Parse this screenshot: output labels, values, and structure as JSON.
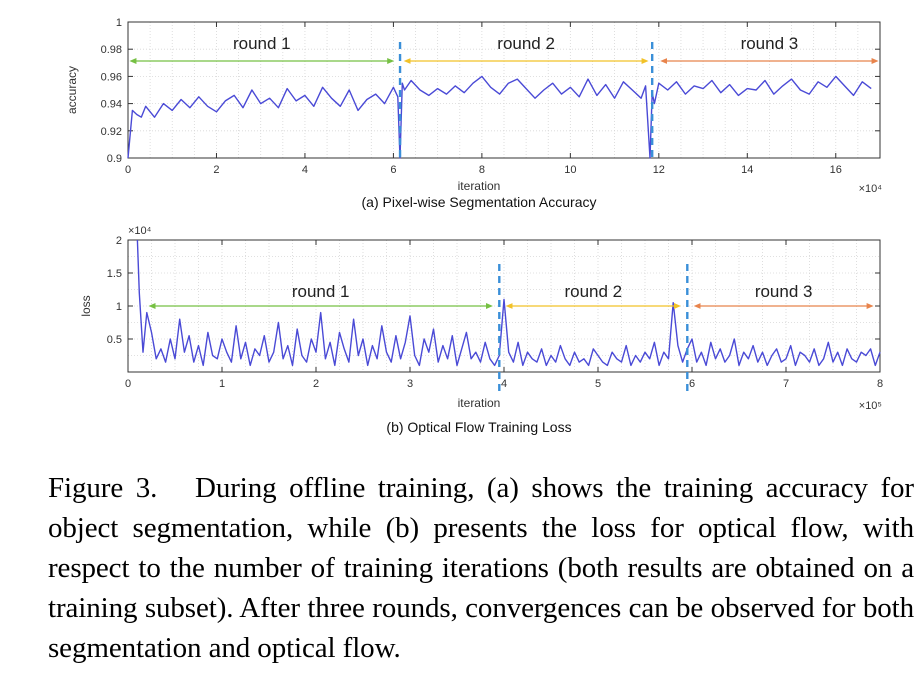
{
  "caption": {
    "label": "Figure 3.",
    "text": "During offline training, (a) shows the training accuracy for object segmentation, while (b) presents the loss for optical flow, with respect to the number of training iterations (both results are obtained on a training subset). After three rounds, convergences can be observed for both segmentation and optical flow."
  },
  "chart_data": [
    {
      "type": "line",
      "subtitle": "(a) Pixel-wise Segmentation Accuracy",
      "xlabel": "iteration",
      "ylabel": "accuracy",
      "x_multiplier": "×10⁴",
      "xlim": [
        0,
        17
      ],
      "ylim": [
        0.9,
        1.0
      ],
      "x_ticks": [
        0,
        2,
        4,
        6,
        8,
        10,
        12,
        14,
        16
      ],
      "y_ticks": [
        0.9,
        0.92,
        0.94,
        0.96,
        0.98,
        1
      ],
      "y_tick_labels": [
        "0.9",
        "0.92",
        "0.94",
        "0.96",
        "0.98",
        "1"
      ],
      "grid": true,
      "color": "#4a4ad6",
      "round_boundaries": [
        6.15,
        11.85
      ],
      "rounds": [
        {
          "label": "round 1",
          "from": 0.1,
          "to": 5.95,
          "color": "#76c043"
        },
        {
          "label": "round 2",
          "from": 6.3,
          "to": 11.7,
          "color": "#f2c228"
        },
        {
          "label": "round 3",
          "from": 12.1,
          "to": 16.9,
          "color": "#e8844c"
        }
      ],
      "series": [
        {
          "x": [
            0,
            0.1,
            0.2,
            0.3,
            0.4,
            0.6,
            0.8,
            1.0,
            1.2,
            1.4,
            1.6,
            1.8,
            2.0,
            2.2,
            2.4,
            2.6,
            2.8,
            3.0,
            3.2,
            3.4,
            3.6,
            3.8,
            4.0,
            4.2,
            4.4,
            4.6,
            4.8,
            5.0,
            5.2,
            5.4,
            5.6,
            5.8,
            6.0,
            6.1,
            6.15,
            6.2,
            6.25,
            6.4,
            6.6,
            6.8,
            7.0,
            7.2,
            7.4,
            7.6,
            7.8,
            8.0,
            8.2,
            8.4,
            8.6,
            8.8,
            9.0,
            9.2,
            9.4,
            9.6,
            9.8,
            10.0,
            10.2,
            10.4,
            10.6,
            10.8,
            11.0,
            11.2,
            11.4,
            11.6,
            11.7,
            11.8,
            11.85,
            11.9,
            12.0,
            12.2,
            12.4,
            12.6,
            12.8,
            13.0,
            13.2,
            13.4,
            13.6,
            13.8,
            14.0,
            14.2,
            14.4,
            14.6,
            14.8,
            15.0,
            15.2,
            15.4,
            15.6,
            15.8,
            16.0,
            16.2,
            16.4,
            16.6,
            16.8
          ],
          "y": [
            0.9,
            0.935,
            0.932,
            0.93,
            0.938,
            0.93,
            0.94,
            0.935,
            0.943,
            0.937,
            0.945,
            0.938,
            0.934,
            0.942,
            0.946,
            0.937,
            0.95,
            0.94,
            0.944,
            0.937,
            0.951,
            0.942,
            0.946,
            0.938,
            0.952,
            0.944,
            0.938,
            0.95,
            0.935,
            0.943,
            0.947,
            0.94,
            0.952,
            0.945,
            0.9,
            0.955,
            0.95,
            0.957,
            0.95,
            0.946,
            0.951,
            0.947,
            0.953,
            0.948,
            0.955,
            0.96,
            0.952,
            0.947,
            0.955,
            0.958,
            0.951,
            0.944,
            0.95,
            0.955,
            0.947,
            0.952,
            0.945,
            0.958,
            0.946,
            0.954,
            0.944,
            0.956,
            0.95,
            0.944,
            0.953,
            0.9,
            0.948,
            0.94,
            0.955,
            0.95,
            0.956,
            0.947,
            0.953,
            0.951,
            0.957,
            0.948,
            0.954,
            0.946,
            0.951,
            0.95,
            0.957,
            0.947,
            0.953,
            0.958,
            0.95,
            0.947,
            0.956,
            0.952,
            0.96,
            0.953,
            0.946,
            0.956,
            0.951
          ]
        }
      ]
    },
    {
      "type": "line",
      "subtitle": "(b) Optical Flow Training Loss",
      "xlabel": "iteration",
      "ylabel": "loss",
      "x_multiplier": "×10⁵",
      "y_multiplier": "×10⁴",
      "xlim": [
        0,
        8
      ],
      "ylim": [
        0,
        2
      ],
      "x_ticks": [
        0,
        1,
        2,
        3,
        4,
        5,
        6,
        7,
        8
      ],
      "y_ticks": [
        0.5,
        1,
        1.5,
        2
      ],
      "y_tick_labels": [
        "0.5",
        "1",
        "1.5",
        "2"
      ],
      "grid": true,
      "color": "#4a4ad6",
      "round_boundaries": [
        3.95,
        5.95
      ],
      "rounds": [
        {
          "label": "round 1",
          "from": 0.25,
          "to": 3.85,
          "color": "#76c043"
        },
        {
          "label": "round 2",
          "from": 4.05,
          "to": 5.85,
          "color": "#f2c228"
        },
        {
          "label": "round 3",
          "from": 6.05,
          "to": 7.9,
          "color": "#e8844c"
        }
      ],
      "series": [
        {
          "x": [
            0.1,
            0.12,
            0.16,
            0.2,
            0.25,
            0.3,
            0.35,
            0.4,
            0.45,
            0.5,
            0.55,
            0.6,
            0.65,
            0.7,
            0.75,
            0.8,
            0.85,
            0.9,
            0.95,
            1.0,
            1.05,
            1.1,
            1.15,
            1.2,
            1.25,
            1.3,
            1.35,
            1.4,
            1.45,
            1.5,
            1.55,
            1.6,
            1.65,
            1.7,
            1.75,
            1.8,
            1.85,
            1.9,
            1.95,
            2.0,
            2.05,
            2.1,
            2.15,
            2.2,
            2.25,
            2.3,
            2.35,
            2.4,
            2.45,
            2.5,
            2.55,
            2.6,
            2.65,
            2.7,
            2.75,
            2.8,
            2.85,
            2.9,
            2.95,
            3.0,
            3.05,
            3.1,
            3.15,
            3.2,
            3.25,
            3.3,
            3.35,
            3.4,
            3.45,
            3.5,
            3.55,
            3.6,
            3.65,
            3.7,
            3.75,
            3.8,
            3.85,
            3.9,
            3.95,
            4.0,
            4.05,
            4.1,
            4.15,
            4.2,
            4.25,
            4.3,
            4.35,
            4.4,
            4.45,
            4.5,
            4.55,
            4.6,
            4.65,
            4.7,
            4.75,
            4.8,
            4.85,
            4.9,
            4.95,
            5.0,
            5.05,
            5.1,
            5.15,
            5.2,
            5.25,
            5.3,
            5.35,
            5.4,
            5.45,
            5.5,
            5.55,
            5.6,
            5.65,
            5.7,
            5.75,
            5.8,
            5.85,
            5.9,
            5.95,
            6.0,
            6.05,
            6.1,
            6.15,
            6.2,
            6.25,
            6.3,
            6.35,
            6.4,
            6.45,
            6.5,
            6.55,
            6.6,
            6.65,
            6.7,
            6.75,
            6.8,
            6.85,
            6.9,
            6.95,
            7.0,
            7.05,
            7.1,
            7.15,
            7.2,
            7.25,
            7.3,
            7.35,
            7.4,
            7.45,
            7.5,
            7.55,
            7.6,
            7.65,
            7.7,
            7.75,
            7.8,
            7.85,
            7.9,
            7.95,
            8.0
          ],
          "y": [
            2.0,
            1.2,
            0.3,
            0.9,
            0.6,
            0.2,
            0.35,
            0.15,
            0.5,
            0.2,
            0.8,
            0.3,
            0.55,
            0.15,
            0.4,
            0.1,
            0.6,
            0.25,
            0.2,
            0.5,
            0.3,
            0.15,
            0.7,
            0.2,
            0.45,
            0.1,
            0.35,
            0.25,
            0.55,
            0.15,
            0.3,
            0.75,
            0.2,
            0.4,
            0.1,
            0.65,
            0.25,
            0.15,
            0.5,
            0.3,
            0.9,
            0.2,
            0.45,
            0.1,
            0.6,
            0.35,
            0.15,
            0.8,
            0.25,
            0.5,
            0.1,
            0.4,
            0.2,
            0.7,
            0.3,
            0.15,
            0.55,
            0.2,
            0.45,
            0.85,
            0.25,
            0.1,
            0.5,
            0.3,
            0.65,
            0.15,
            0.4,
            0.2,
            0.55,
            0.1,
            0.35,
            0.6,
            0.2,
            0.3,
            0.15,
            0.45,
            0.2,
            0.1,
            0.25,
            1.1,
            0.3,
            0.15,
            0.45,
            0.1,
            0.3,
            0.2,
            0.15,
            0.35,
            0.1,
            0.25,
            0.15,
            0.4,
            0.2,
            0.1,
            0.3,
            0.15,
            0.2,
            0.1,
            0.35,
            0.25,
            0.15,
            0.1,
            0.3,
            0.2,
            0.15,
            0.4,
            0.1,
            0.25,
            0.15,
            0.3,
            0.2,
            0.45,
            0.1,
            0.3,
            0.2,
            1.05,
            0.4,
            0.15,
            0.35,
            0.5,
            0.15,
            0.3,
            0.1,
            0.45,
            0.2,
            0.35,
            0.15,
            0.25,
            0.5,
            0.1,
            0.3,
            0.2,
            0.4,
            0.15,
            0.3,
            0.1,
            0.25,
            0.35,
            0.15,
            0.2,
            0.4,
            0.1,
            0.3,
            0.25,
            0.15,
            0.35,
            0.1,
            0.2,
            0.45,
            0.15,
            0.3,
            0.1,
            0.35,
            0.2,
            0.15,
            0.3,
            0.25,
            0.35,
            0.1,
            0.3
          ]
        }
      ]
    }
  ]
}
